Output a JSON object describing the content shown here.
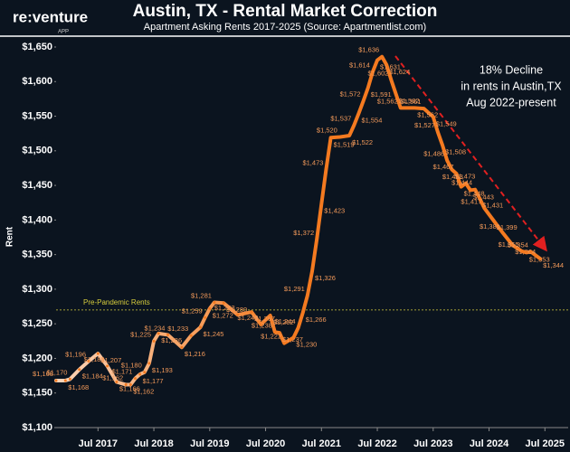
{
  "logo": {
    "text": "re:venture",
    "sub": "APP"
  },
  "chart_data": {
    "type": "line",
    "title": "Austin, TX - Rental Market Correction",
    "subtitle": "Apartment Asking Rents 2017-2025 (Source: Apartmentlist.com)",
    "ylabel": "Rent",
    "x": [
      "2016-10",
      "2016-12",
      "2017-01",
      "2017-03",
      "2017-05",
      "2017-07",
      "2017-09",
      "2017-11",
      "2018-01",
      "2018-02",
      "2018-03",
      "2018-04",
      "2018-05",
      "2018-06",
      "2018-07",
      "2018-08",
      "2018-10",
      "2019-01",
      "2019-03",
      "2019-05",
      "2019-06",
      "2019-07",
      "2019-08",
      "2019-10",
      "2020-01",
      "2020-04",
      "2020-06",
      "2020-08",
      "2020-09",
      "2020-10",
      "2020-11",
      "2021-01",
      "2021-02",
      "2021-03",
      "2021-04",
      "2021-05",
      "2021-06",
      "2021-07",
      "2021-08",
      "2021-09",
      "2021-11",
      "2022-01",
      "2022-02",
      "2022-03",
      "2022-04",
      "2022-05",
      "2022-06",
      "2022-07",
      "2022-08",
      "2022-09",
      "2022-10",
      "2022-11",
      "2022-12",
      "2023-03",
      "2023-05",
      "2023-07",
      "2023-08",
      "2023-09",
      "2023-10",
      "2023-11",
      "2023-12",
      "2024-01",
      "2024-02",
      "2024-03",
      "2024-04",
      "2024-05",
      "2024-06",
      "2024-08",
      "2024-10",
      "2024-12",
      "2025-02",
      "2025-03",
      "2025-04",
      "2025-06"
    ],
    "series": [
      {
        "name": "Rent",
        "color": "#f47a20",
        "gradient": [
          "#fbd6bb",
          "#f47a20"
        ],
        "values": [
          1168,
          1168,
          1170,
          1184,
          1196,
          1207,
          1189,
          1166,
          1162,
          1162,
          1171,
          1177,
          1180,
          1193,
          1225,
          1236,
          1234,
          1216,
          1233,
          1245,
          1259,
          1272,
          1281,
          1280,
          1263,
          1267,
          1249,
          1262,
          1238,
          1237,
          1222,
          1230,
          1244,
          1266,
          1291,
          1326,
          1372,
          1423,
          1473,
          1519,
          1520,
          1522,
          1537,
          1554,
          1572,
          1591,
          1614,
          1631,
          1636,
          1624,
          1602,
          1582,
          1562,
          1562,
          1561,
          1549,
          1527,
          1508,
          1486,
          1473,
          1467,
          1448,
          1453,
          1443,
          1444,
          1431,
          1417,
          1399,
          1381,
          1364,
          1355,
          1353,
          1354,
          1344
        ],
        "value_labels": [
          "$1,168",
          "$1,168",
          "$1,170",
          "$1,184",
          "$1,196",
          "$1,207",
          "$1,189",
          "$1,166",
          "$1,162",
          "$1,162",
          "$1,171",
          "$1,177",
          "$1,180",
          "$1,193",
          "$1,225",
          "$1,236",
          "$1,234",
          "$1,216",
          "$1,233",
          "$1,245",
          "$1,259",
          "$1,272",
          "$1,281",
          "$1,280",
          "$1,263",
          "$1,267",
          "$1,249",
          "$1,262",
          "$1,238",
          "$1,237",
          "$1,222",
          "$1,230",
          "$1,244",
          "$1,266",
          "$1,291",
          "$1,326",
          "$1,372",
          "$1,423",
          "$1,473",
          "$1,519",
          "$1,520",
          "$1,522",
          "$1,537",
          "$1,554",
          "$1,572",
          "$1,591",
          "$1,614",
          "$1,631",
          "$1,636",
          "$1,624",
          "$1,602",
          "$1,582",
          "$1,562",
          "$1,562",
          "$1,561",
          "$1,549",
          "$1,527",
          "$1,508",
          "$1,486",
          "$1,473",
          "$1,467",
          "$1,448",
          "$1,453",
          "$1,443",
          "$1,444",
          "$1,431",
          "$1,417",
          "$1,399",
          "$1,381",
          "$1,364",
          "$1,355",
          "$1,353",
          "$1,354",
          "$1,344"
        ]
      }
    ],
    "xlim": [
      "2016-10",
      "2025-12"
    ],
    "xticks": [
      {
        "value": "2017-07",
        "label": "Jul 2017"
      },
      {
        "value": "2018-07",
        "label": "Jul 2018"
      },
      {
        "value": "2019-07",
        "label": "Jul 2019"
      },
      {
        "value": "2020-07",
        "label": "Jul 2020"
      },
      {
        "value": "2021-07",
        "label": "Jul 2021"
      },
      {
        "value": "2022-07",
        "label": "Jul 2022"
      },
      {
        "value": "2023-07",
        "label": "Jul 2023"
      },
      {
        "value": "2024-07",
        "label": "Jul 2024"
      },
      {
        "value": "2025-07",
        "label": "Jul 2025"
      }
    ],
    "ylim": [
      1100,
      1650
    ],
    "yticks": [
      {
        "value": 1100,
        "label": "$1,100"
      },
      {
        "value": 1150,
        "label": "$1,150"
      },
      {
        "value": 1200,
        "label": "$1,200"
      },
      {
        "value": 1250,
        "label": "$1,250"
      },
      {
        "value": 1300,
        "label": "$1,300"
      },
      {
        "value": 1350,
        "label": "$1,350"
      },
      {
        "value": 1400,
        "label": "$1,400"
      },
      {
        "value": 1450,
        "label": "$1,450"
      },
      {
        "value": 1500,
        "label": "$1,500"
      },
      {
        "value": 1550,
        "label": "$1,550"
      },
      {
        "value": 1600,
        "label": "$1,600"
      },
      {
        "value": 1650,
        "label": "$1,650"
      }
    ],
    "grid": false,
    "reference_line": {
      "value": 1270,
      "label": "Pre-Pandemic Rents",
      "color": "#d6cc3c"
    },
    "annotation": [
      "18% Decline",
      "in rents in Austin,TX",
      "Aug 2022-present"
    ]
  }
}
